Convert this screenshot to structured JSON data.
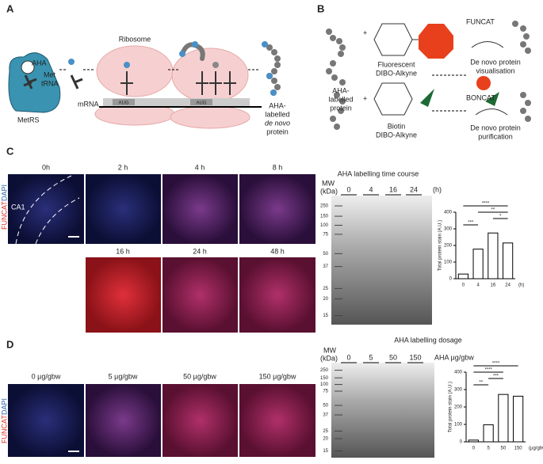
{
  "figure": {
    "panel_labels": [
      "A",
      "B",
      "C",
      "D"
    ],
    "a": {
      "aha": "AHA",
      "met": "Met",
      "trna": "tRNA",
      "metrs": "MetRS",
      "ribosome": "Ribosome",
      "mrna": "mRNA",
      "codons": [
        "AUG",
        "AUG"
      ],
      "product": [
        "AHA-",
        "labelled",
        "de novo",
        "protein"
      ]
    },
    "b": {
      "funcat": "FUNCAT",
      "boncat": "BONCAT",
      "fluor": [
        "Fluorescent",
        "DIBO-Alkyne"
      ],
      "biotin": [
        "Biotin",
        "DIBO-Alkyne"
      ],
      "aha_protein": [
        "AHA-",
        "labelled",
        "protein"
      ],
      "plus": "+",
      "visual": [
        "De novo protein",
        "visualisation"
      ],
      "purif": [
        "De novo protein",
        "purification"
      ]
    },
    "c": {
      "stain": "FUNCAT",
      "dapi": "DAPI",
      "region": "CA1",
      "times": [
        "0h",
        "2 h",
        "4 h",
        "8 h",
        "16 h",
        "24 h",
        "48 h"
      ],
      "title": "AHA labelling time course",
      "mw": "MW",
      "kda": "(kDa)",
      "lanes": [
        "0",
        "4",
        "16",
        "24"
      ],
      "lane_unit": "(h)",
      "markers": [
        "250",
        "150",
        "100",
        "75",
        "50",
        "37",
        "25",
        "20",
        "15"
      ]
    },
    "d": {
      "stain": "FUNCAT",
      "dapi": "DAPI",
      "doses": [
        "0 µg/gbw",
        "5 µg/gbw",
        "50 µg/gbw",
        "150 µg/gbw"
      ],
      "title": "AHA labelling dosage",
      "mw": "MW",
      "kda": "(kDa)",
      "lanes": [
        "0",
        "5",
        "50",
        "150"
      ],
      "lane_unit": "AHA µg/gbw",
      "markers": [
        "250",
        "150",
        "100",
        "75",
        "50",
        "37",
        "25",
        "20",
        "15"
      ]
    }
  },
  "chart_data": [
    {
      "type": "bar",
      "categories": [
        "0",
        "4",
        "16",
        "24"
      ],
      "values": [
        28,
        178,
        275,
        215
      ],
      "color": "#ffffff",
      "ylim": [
        0,
        400
      ],
      "yticks": [
        0,
        100,
        200,
        300,
        400
      ],
      "y_label": "Total protein stain (A.U.)",
      "x_label": "(h)",
      "annotations": [
        "****",
        "**",
        "*",
        "***"
      ]
    },
    {
      "type": "bar",
      "categories": [
        "0",
        "5",
        "50",
        "150"
      ],
      "values": [
        10,
        98,
        272,
        262
      ],
      "color": "#ffffff",
      "ylim": [
        0,
        400
      ],
      "yticks": [
        0,
        100,
        200,
        300,
        400
      ],
      "y_label": "Total protein stain (A.U.)",
      "x_label": "(µg/gbw)",
      "annotations": [
        "****",
        "****",
        "***",
        "**"
      ]
    }
  ]
}
